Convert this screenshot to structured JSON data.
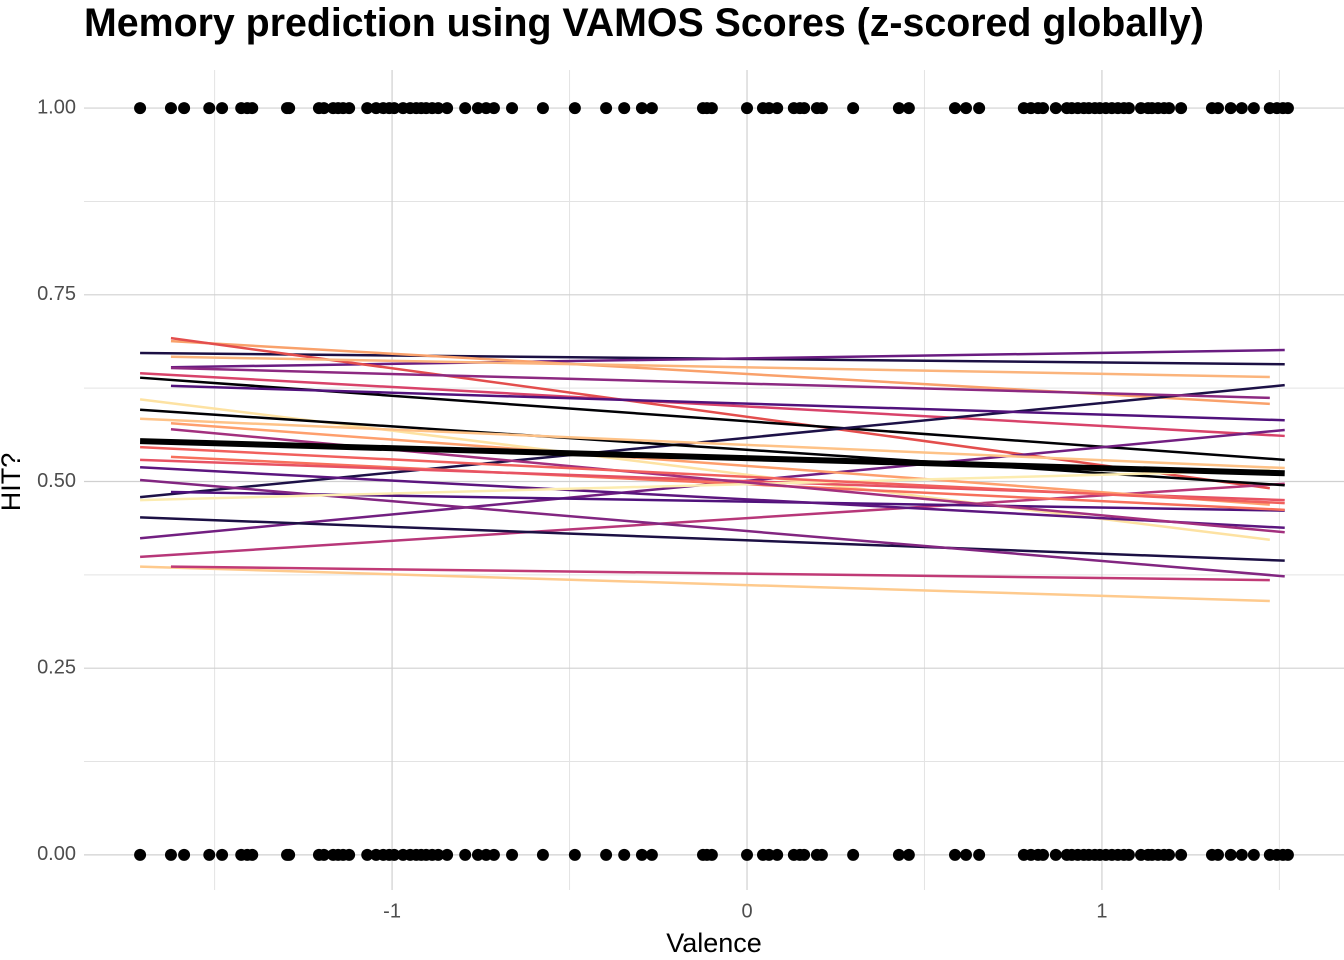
{
  "chart_data": {
    "type": "scatter",
    "title": "Memory prediction using VAMOS Scores (z-scored globally)",
    "x_label": "Valence",
    "y_label": "HIT?",
    "xlim": [
      -1.868,
      1.682
    ],
    "ylim": [
      -0.047,
      1.051
    ],
    "xticks": [
      -1,
      0,
      1
    ],
    "yticks": [
      {
        "value": 0,
        "label": "0.00"
      },
      {
        "value": 0.25,
        "label": "0.25"
      },
      {
        "value": 0.5,
        "label": "0.50"
      },
      {
        "value": 0.75,
        "label": "0.75"
      },
      {
        "value": 1,
        "label": "1.00"
      }
    ],
    "minor_xticks": [
      -1.5,
      -0.5,
      0.5,
      1.5
    ],
    "minor_yticks": [
      0.125,
      0.375,
      0.625,
      0.875
    ],
    "grid": true,
    "series": [
      {
        "type": "line",
        "color": "#1c1044",
        "x": [
          -1.71,
          1.515
        ],
        "values": [
          0.672,
          0.657
        ]
      },
      {
        "type": "line",
        "color": "#6a1c81",
        "x": [
          -1.623,
          1.515
        ],
        "values": [
          0.653,
          0.676
        ]
      },
      {
        "type": "line",
        "color": "#f9a16b",
        "x": [
          -1.623,
          1.473
        ],
        "values": [
          0.688,
          0.604
        ]
      },
      {
        "type": "line",
        "color": "#e34e4d",
        "x": [
          -1.623,
          1.473
        ],
        "values": [
          0.692,
          0.491
        ]
      },
      {
        "type": "line",
        "color": "#d8436a",
        "x": [
          -1.71,
          1.515
        ],
        "values": [
          0.645,
          0.561
        ]
      },
      {
        "type": "line",
        "color": "#fbb47c",
        "x": [
          -1.623,
          1.473
        ],
        "values": [
          0.667,
          0.64
        ]
      },
      {
        "type": "line",
        "color": "#000004",
        "x": [
          -1.71,
          1.515
        ],
        "values": [
          0.639,
          0.529
        ]
      },
      {
        "type": "line",
        "color": "#1d1147",
        "x": [
          -1.71,
          1.515
        ],
        "values": [
          0.479,
          0.629
        ]
      },
      {
        "type": "line",
        "color": "#8c2981",
        "x": [
          -1.623,
          1.473
        ],
        "values": [
          0.652,
          0.612
        ]
      },
      {
        "type": "line",
        "color": "#b73779",
        "x": [
          -1.71,
          1.515
        ],
        "values": [
          0.399,
          0.497
        ]
      },
      {
        "type": "line",
        "color": "#721f81",
        "x": [
          -1.71,
          1.515
        ],
        "values": [
          0.424,
          0.569
        ]
      },
      {
        "type": "line",
        "color": "#51127c",
        "x": [
          -1.623,
          1.515
        ],
        "values": [
          0.628,
          0.582
        ]
      },
      {
        "type": "line",
        "color": "#fde2a2",
        "x": [
          -1.71,
          1.473
        ],
        "values": [
          0.61,
          0.422
        ]
      },
      {
        "type": "line",
        "color": "#000004",
        "x": [
          -1.71,
          1.515
        ],
        "values": [
          0.596,
          0.495
        ]
      },
      {
        "type": "line",
        "color": "#1c1044",
        "x": [
          -1.71,
          1.515
        ],
        "values": [
          0.452,
          0.394
        ]
      },
      {
        "type": "line",
        "color": "#4f127b",
        "x": [
          -1.623,
          1.515
        ],
        "values": [
          0.486,
          0.461
        ]
      },
      {
        "type": "line",
        "color": "#feca8d",
        "x": [
          -1.71,
          1.473
        ],
        "values": [
          0.386,
          0.34
        ]
      },
      {
        "type": "line",
        "color": "#c03a76",
        "x": [
          -1.623,
          1.473
        ],
        "values": [
          0.386,
          0.368
        ]
      },
      {
        "type": "line",
        "color": "#822681",
        "x": [
          -1.71,
          1.515
        ],
        "values": [
          0.502,
          0.373
        ]
      },
      {
        "type": "line",
        "color": "#f7705c",
        "x": [
          -1.623,
          1.515
        ],
        "values": [
          0.533,
          0.462
        ]
      },
      {
        "type": "line",
        "color": "#e75263",
        "x": [
          -1.71,
          1.515
        ],
        "values": [
          0.529,
          0.475
        ]
      },
      {
        "type": "line",
        "color": "#5c167f",
        "x": [
          -1.71,
          1.515
        ],
        "values": [
          0.519,
          0.438
        ]
      },
      {
        "type": "line",
        "color": "#fe9f6d",
        "x": [
          -1.623,
          1.473
        ],
        "values": [
          0.578,
          0.469
        ]
      },
      {
        "type": "line",
        "color": "#fec287",
        "x": [
          -1.71,
          1.515
        ],
        "values": [
          0.584,
          0.518
        ]
      },
      {
        "type": "line",
        "color": "#fcecb0",
        "x": [
          -1.71,
          1.473
        ],
        "values": [
          0.475,
          0.515
        ]
      },
      {
        "type": "line",
        "color": "#a3307e",
        "x": [
          -1.623,
          1.515
        ],
        "values": [
          0.57,
          0.432
        ]
      },
      {
        "type": "line",
        "color": "#f1605d",
        "x": [
          -1.71,
          1.515
        ],
        "values": [
          0.546,
          0.471
        ]
      },
      {
        "type": "line",
        "color": "#000000",
        "linewidth": 6,
        "x": [
          -1.71,
          1.515
        ],
        "values": [
          0.554,
          0.511
        ]
      },
      {
        "type": "scatter",
        "color": "#000000",
        "x": [
          -1.71,
          -1.623,
          -1.586,
          -1.515,
          -1.479,
          -1.425,
          -1.408,
          -1.394,
          -1.296,
          -1.29,
          -1.206,
          -1.192,
          -1.166,
          -1.152,
          -1.138,
          -1.121,
          -1.07,
          -1.045,
          -1.025,
          -1.008,
          -0.994,
          -0.969,
          -0.949,
          -0.932,
          -0.918,
          -0.904,
          -0.887,
          -0.87,
          -0.845,
          -0.794,
          -0.758,
          -0.735,
          -0.713,
          -0.662,
          -0.575,
          -0.485,
          -0.397,
          -0.346,
          -0.296,
          -0.268,
          -0.124,
          -0.113,
          -0.099,
          0.0,
          0.045,
          0.062,
          0.085,
          0.132,
          0.149,
          0.161,
          0.197,
          0.211,
          0.299,
          0.428,
          0.456,
          0.586,
          0.617,
          0.654,
          0.78,
          0.8,
          0.82,
          0.834,
          0.87,
          0.901,
          0.915,
          0.932,
          0.949,
          0.963,
          0.98,
          0.994,
          1.011,
          1.028,
          1.045,
          1.062,
          1.076,
          1.11,
          1.13,
          1.141,
          1.158,
          1.175,
          1.189,
          1.223,
          1.31,
          1.327,
          1.363,
          1.394,
          1.428,
          1.473,
          1.493,
          1.51,
          1.524
        ],
        "values": [
          1,
          1,
          1,
          1,
          1,
          1,
          1,
          1,
          1,
          1,
          1,
          1,
          1,
          1,
          1,
          1,
          1,
          1,
          1,
          1,
          1,
          1,
          1,
          1,
          1,
          1,
          1,
          1,
          1,
          1,
          1,
          1,
          1,
          1,
          1,
          1,
          1,
          1,
          1,
          1,
          1,
          1,
          1,
          1,
          1,
          1,
          1,
          1,
          1,
          1,
          1,
          1,
          1,
          1,
          1,
          1,
          1,
          1,
          1,
          1,
          1,
          1,
          1,
          1,
          1,
          1,
          1,
          1,
          1,
          1,
          1,
          1,
          1,
          1,
          1,
          1,
          1,
          1,
          1,
          1,
          1,
          1,
          1,
          1,
          1,
          1,
          1,
          1,
          1,
          1,
          1
        ]
      },
      {
        "type": "scatter",
        "color": "#000000",
        "x": [
          -1.71,
          -1.623,
          -1.586,
          -1.515,
          -1.479,
          -1.425,
          -1.408,
          -1.394,
          -1.296,
          -1.29,
          -1.206,
          -1.192,
          -1.166,
          -1.152,
          -1.138,
          -1.121,
          -1.07,
          -1.045,
          -1.025,
          -1.008,
          -0.994,
          -0.969,
          -0.949,
          -0.932,
          -0.918,
          -0.904,
          -0.887,
          -0.87,
          -0.845,
          -0.794,
          -0.758,
          -0.735,
          -0.713,
          -0.662,
          -0.575,
          -0.485,
          -0.397,
          -0.346,
          -0.296,
          -0.268,
          -0.124,
          -0.113,
          -0.099,
          0.0,
          0.045,
          0.062,
          0.085,
          0.132,
          0.149,
          0.161,
          0.197,
          0.211,
          0.299,
          0.428,
          0.456,
          0.586,
          0.617,
          0.654,
          0.78,
          0.8,
          0.82,
          0.834,
          0.87,
          0.901,
          0.915,
          0.932,
          0.949,
          0.963,
          0.98,
          0.994,
          1.011,
          1.028,
          1.045,
          1.062,
          1.076,
          1.11,
          1.13,
          1.141,
          1.158,
          1.175,
          1.189,
          1.223,
          1.31,
          1.327,
          1.363,
          1.394,
          1.428,
          1.473,
          1.493,
          1.51,
          1.524
        ],
        "values": [
          0,
          0,
          0,
          0,
          0,
          0,
          0,
          0,
          0,
          0,
          0,
          0,
          0,
          0,
          0,
          0,
          0,
          0,
          0,
          0,
          0,
          0,
          0,
          0,
          0,
          0,
          0,
          0,
          0,
          0,
          0,
          0,
          0,
          0,
          0,
          0,
          0,
          0,
          0,
          0,
          0,
          0,
          0,
          0,
          0,
          0,
          0,
          0,
          0,
          0,
          0,
          0,
          0,
          0,
          0,
          0,
          0,
          0,
          0,
          0,
          0,
          0,
          0,
          0,
          0,
          0,
          0,
          0,
          0,
          0,
          0,
          0,
          0,
          0,
          0,
          0,
          0,
          0,
          0,
          0,
          0,
          0,
          0,
          0,
          0,
          0,
          0,
          0,
          0,
          0,
          0
        ]
      }
    ]
  }
}
